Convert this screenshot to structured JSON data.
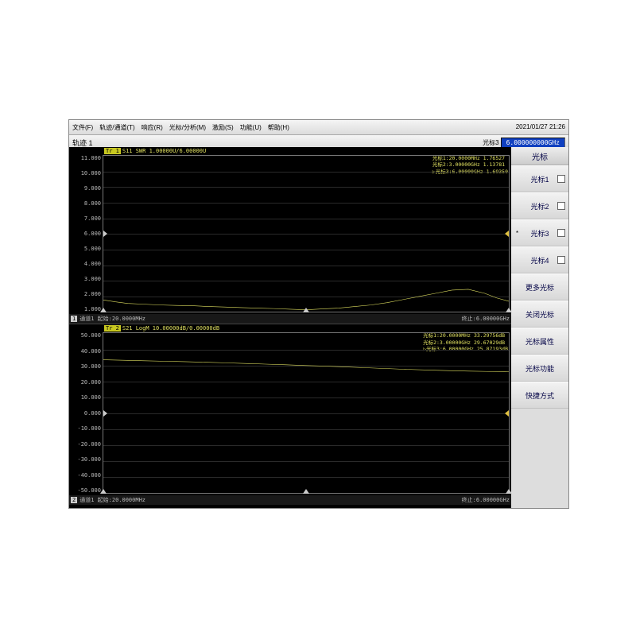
{
  "datetime": "2021/01/27 21:26",
  "menu": {
    "items": [
      "文件(F)",
      "轨迹/通道(T)",
      "响应(R)",
      "光标/分析(M)",
      "激励(S)",
      "功能(U)",
      "帮助(H)"
    ]
  },
  "toolbar": {
    "title": "轨迹 1",
    "marker_label": "光标3",
    "marker_value": "6.000000000GHz"
  },
  "sidebar": {
    "header": "光标",
    "buttons": [
      {
        "label": "光标1",
        "check": true,
        "star": false
      },
      {
        "label": "光标2",
        "check": true,
        "star": false
      },
      {
        "label": "光标3",
        "check": true,
        "star": true
      },
      {
        "label": "光标4",
        "check": true,
        "star": false
      },
      {
        "label": "更多光标",
        "check": false,
        "star": false
      },
      {
        "label": "关闭光标",
        "check": false,
        "star": false
      },
      {
        "label": "光标属性",
        "check": false,
        "star": false
      },
      {
        "label": "光标功能",
        "check": false,
        "star": false
      },
      {
        "label": "快捷方式",
        "check": false,
        "star": false
      }
    ]
  },
  "chart1": {
    "trace_badge": "Tr 1",
    "trace_label": "S11 SWR 1.00000U/6.00000U",
    "markers": [
      "光标1:20.0000MHz 1.76527",
      " 光标2:3.00000GHz 1.13781",
      "▷光标3:6.00000GHz 1.69350"
    ],
    "yticks": [
      "11.000",
      "10.000",
      "9.000",
      "8.000",
      "7.000",
      "6.000",
      "5.000",
      "4.000",
      "3.000",
      "2.000",
      "1.000"
    ],
    "ylim": [
      1,
      11
    ],
    "ref_y": 6.0,
    "footer_ch": "1",
    "footer_left": "通道1  起始:20.0000MHz",
    "footer_right": "终止:6.00000GHz",
    "trace_color": "#e0e060",
    "series": [
      [
        0,
        1.77
      ],
      [
        0.03,
        1.65
      ],
      [
        0.06,
        1.55
      ],
      [
        0.1,
        1.5
      ],
      [
        0.14,
        1.45
      ],
      [
        0.18,
        1.42
      ],
      [
        0.22,
        1.4
      ],
      [
        0.26,
        1.35
      ],
      [
        0.3,
        1.32
      ],
      [
        0.34,
        1.28
      ],
      [
        0.38,
        1.25
      ],
      [
        0.42,
        1.22
      ],
      [
        0.46,
        1.18
      ],
      [
        0.5,
        1.14
      ],
      [
        0.54,
        1.2
      ],
      [
        0.58,
        1.25
      ],
      [
        0.62,
        1.35
      ],
      [
        0.66,
        1.45
      ],
      [
        0.7,
        1.6
      ],
      [
        0.74,
        1.8
      ],
      [
        0.78,
        2.0
      ],
      [
        0.82,
        2.2
      ],
      [
        0.86,
        2.4
      ],
      [
        0.9,
        2.45
      ],
      [
        0.94,
        2.2
      ],
      [
        0.97,
        1.9
      ],
      [
        1.0,
        1.69
      ]
    ],
    "markers_x": [
      0.0,
      0.5,
      1.0
    ]
  },
  "chart2": {
    "trace_badge": "Tr 2",
    "trace_label": "S21 LogM 10.00000dB/0.00000dB",
    "markers": [
      "光标1:20.0000MHz 33.29756dB",
      " 光标2:3.00000GHz 29.67029dB",
      "▷光标3:6.00000GHz 25.87193dB"
    ],
    "yticks": [
      "50.000",
      "40.000",
      "30.000",
      "20.000",
      "10.000",
      "0.000",
      "-10.000",
      "-20.000",
      "-30.000",
      "-40.000",
      "-50.000"
    ],
    "ylim": [
      -50,
      50
    ],
    "ref_y": 0.0,
    "footer_ch": "2",
    "footer_left": "通道1  起始:20.0000MHz",
    "footer_right": "终止:6.00000GHz",
    "trace_color": "#e0e060",
    "series": [
      [
        0,
        33.3
      ],
      [
        0.05,
        33.0
      ],
      [
        0.1,
        32.7
      ],
      [
        0.15,
        32.4
      ],
      [
        0.2,
        32.1
      ],
      [
        0.25,
        31.8
      ],
      [
        0.3,
        31.4
      ],
      [
        0.35,
        31.0
      ],
      [
        0.4,
        30.6
      ],
      [
        0.45,
        30.2
      ],
      [
        0.5,
        29.7
      ],
      [
        0.55,
        29.3
      ],
      [
        0.6,
        28.8
      ],
      [
        0.65,
        28.3
      ],
      [
        0.7,
        27.8
      ],
      [
        0.75,
        27.3
      ],
      [
        0.8,
        26.9
      ],
      [
        0.85,
        26.5
      ],
      [
        0.9,
        26.2
      ],
      [
        0.95,
        26.0
      ],
      [
        1.0,
        25.87
      ]
    ],
    "markers_x": [
      0.0,
      0.5,
      1.0
    ]
  }
}
